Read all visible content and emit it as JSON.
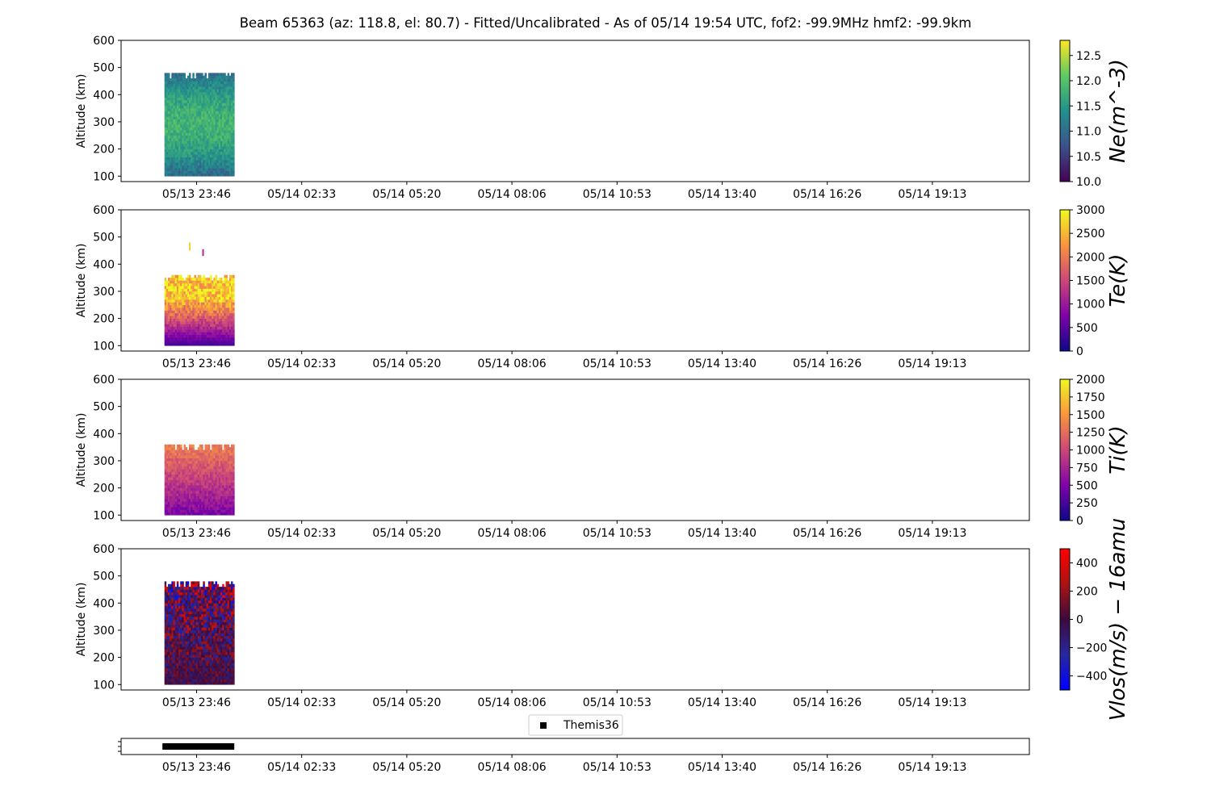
{
  "title": "Beam 65363 (az: 118.8, el: 80.7) - Fitted/Uncalibrated - As of 05/14 19:54 UTC, fof2: -99.9MHz  hmf2: -99.9km",
  "chart_data": [
    {
      "type": "heatmap",
      "name": "Ne",
      "ylabel": "Altitude (km)",
      "ylim": [
        80,
        600
      ],
      "yticks": [
        100,
        200,
        300,
        400,
        500,
        600
      ],
      "xticks": [
        "05/13 23:46",
        "05/14 02:33",
        "05/14 05:20",
        "05/14 08:06",
        "05/14 10:53",
        "05/14 13:40",
        "05/14 16:26",
        "05/14 19:13"
      ],
      "data_extent": {
        "x_start_hours": -0.85,
        "x_end_hours": 1.0,
        "alt_min": 100,
        "alt_max": 480
      },
      "colorbar": {
        "label": "Ne(m^-3)",
        "colormap": "viridis",
        "range": [
          10.0,
          12.8
        ],
        "ticks": [
          "10.0",
          "10.5",
          "11.0",
          "11.5",
          "12.0",
          "12.5"
        ],
        "tick_values": [
          10.0,
          10.5,
          11.0,
          11.5,
          12.0,
          12.5
        ]
      }
    },
    {
      "type": "heatmap",
      "name": "Te",
      "ylabel": "Altitude (km)",
      "ylim": [
        80,
        600
      ],
      "yticks": [
        100,
        200,
        300,
        400,
        500,
        600
      ],
      "xticks": [
        "05/13 23:46",
        "05/14 02:33",
        "05/14 05:20",
        "05/14 08:06",
        "05/14 10:53",
        "05/14 13:40",
        "05/14 16:26",
        "05/14 19:13"
      ],
      "data_extent": {
        "x_start_hours": -0.85,
        "x_end_hours": 1.0,
        "alt_min": 100,
        "alt_max": 360
      },
      "colorbar": {
        "label": "Te(K)",
        "colormap": "plasma",
        "range": [
          0,
          3000
        ],
        "ticks": [
          "0",
          "500",
          "1000",
          "1500",
          "2000",
          "2500",
          "3000"
        ],
        "tick_values": [
          0,
          500,
          1000,
          1500,
          2000,
          2500,
          3000
        ]
      }
    },
    {
      "type": "heatmap",
      "name": "Ti",
      "ylabel": "Altitude (km)",
      "ylim": [
        80,
        600
      ],
      "yticks": [
        100,
        200,
        300,
        400,
        500,
        600
      ],
      "xticks": [
        "05/13 23:46",
        "05/14 02:33",
        "05/14 05:20",
        "05/14 08:06",
        "05/14 10:53",
        "05/14 13:40",
        "05/14 16:26",
        "05/14 19:13"
      ],
      "data_extent": {
        "x_start_hours": -0.85,
        "x_end_hours": 1.0,
        "alt_min": 100,
        "alt_max": 360
      },
      "colorbar": {
        "label": "Ti(K)",
        "colormap": "plasma",
        "range": [
          0,
          2000
        ],
        "ticks": [
          "0",
          "250",
          "500",
          "750",
          "1000",
          "1250",
          "1500",
          "1750",
          "2000"
        ],
        "tick_values": [
          0,
          250,
          500,
          750,
          1000,
          1250,
          1500,
          1750,
          2000
        ]
      }
    },
    {
      "type": "heatmap",
      "name": "Vlos",
      "ylabel": "Altitude (km)",
      "ylim": [
        80,
        600
      ],
      "yticks": [
        100,
        200,
        300,
        400,
        500,
        600
      ],
      "xticks": [
        "05/13 23:46",
        "05/14 02:33",
        "05/14 05:20",
        "05/14 08:06",
        "05/14 10:53",
        "05/14 13:40",
        "05/14 16:26",
        "05/14 19:13"
      ],
      "data_extent": {
        "x_start_hours": -0.85,
        "x_end_hours": 1.0,
        "alt_min": 100,
        "alt_max": 480
      },
      "colorbar": {
        "label": "Vlos(m/s) − 16amu",
        "colormap": "seismic",
        "range": [
          -500,
          500
        ],
        "ticks": [
          "−400",
          "−200",
          "0",
          "200",
          "400"
        ],
        "tick_values": [
          -400,
          -200,
          0,
          200,
          400
        ]
      }
    },
    {
      "type": "scatter",
      "name": "Themis36",
      "legend": {
        "entries": [
          "Themis36"
        ],
        "placement": "top-center"
      },
      "xticks": [
        "05/13 23:46",
        "05/14 02:33",
        "05/14 05:20",
        "05/14 08:06",
        "05/14 10:53",
        "05/14 13:40",
        "05/14 16:26",
        "05/14 19:13"
      ],
      "series": [
        {
          "name": "Themis36",
          "x_start_hours": -0.85,
          "x_end_hours": 1.0,
          "marker": "square",
          "color": "#000000"
        }
      ]
    }
  ]
}
